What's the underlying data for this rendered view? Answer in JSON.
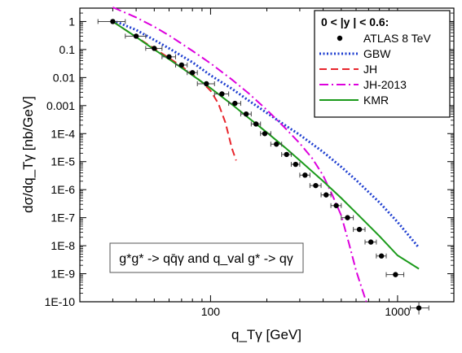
{
  "chart_data": {
    "type": "line",
    "title": "",
    "xlabel": "q_Tγ [GeV]",
    "ylabel": "dσ/dq_Tγ [nb/GeV]",
    "x_scale": "log",
    "y_scale": "log",
    "xlim": [
      20,
      2000
    ],
    "ylim": [
      1e-10,
      3
    ],
    "x_ticks": [
      {
        "value": 100,
        "label": "100"
      },
      {
        "value": 1000,
        "label": "1000"
      }
    ],
    "y_ticks": [
      {
        "value": 1,
        "label": "1"
      },
      {
        "value": 0.1,
        "label": "0.1"
      },
      {
        "value": 0.01,
        "label": "0.01"
      },
      {
        "value": 0.001,
        "label": "0.001"
      },
      {
        "value": 0.0001,
        "label": "1E-4"
      },
      {
        "value": 1e-05,
        "label": "1E-5"
      },
      {
        "value": 1e-06,
        "label": "1E-6"
      },
      {
        "value": 1e-07,
        "label": "1E-7"
      },
      {
        "value": 1e-08,
        "label": "1E-8"
      },
      {
        "value": 1e-09,
        "label": "1E-9"
      },
      {
        "value": 1e-10,
        "label": "1E-10"
      }
    ],
    "legend": {
      "position": "top-right",
      "title": "0 < |y  | < 0.6:",
      "entries": [
        "ATLAS 8 TeV",
        "GBW",
        "JH",
        "JH-2013",
        "KMR"
      ]
    },
    "annotation": "g*g* -> qq̄γ  and q_val g* -> qγ",
    "data_points": {
      "name": "ATLAS 8 TeV",
      "color": "#000000",
      "points": [
        {
          "x": 30,
          "xerr": [
            25,
            35
          ],
          "y": 1.0
        },
        {
          "x": 40,
          "xerr": [
            35,
            45
          ],
          "y": 0.3
        },
        {
          "x": 50,
          "xerr": [
            45,
            55
          ],
          "y": 0.11
        },
        {
          "x": 60,
          "xerr": [
            55,
            65
          ],
          "y": 0.055
        },
        {
          "x": 70,
          "xerr": [
            65,
            75
          ],
          "y": 0.028
        },
        {
          "x": 80,
          "xerr": [
            75,
            85
          ],
          "y": 0.015
        },
        {
          "x": 95,
          "xerr": [
            85,
            105
          ],
          "y": 0.006
        },
        {
          "x": 115,
          "xerr": [
            105,
            125
          ],
          "y": 0.0026
        },
        {
          "x": 135,
          "xerr": [
            125,
            145
          ],
          "y": 0.0012
        },
        {
          "x": 155,
          "xerr": [
            145,
            165
          ],
          "y": 0.0005
        },
        {
          "x": 175,
          "xerr": [
            165,
            185
          ],
          "y": 0.00022
        },
        {
          "x": 195,
          "xerr": [
            185,
            210
          ],
          "y": 0.0001
        },
        {
          "x": 225,
          "xerr": [
            210,
            240
          ],
          "y": 4.2e-05
        },
        {
          "x": 255,
          "xerr": [
            240,
            270
          ],
          "y": 1.8e-05
        },
        {
          "x": 285,
          "xerr": [
            270,
            300
          ],
          "y": 8e-06
        },
        {
          "x": 320,
          "xerr": [
            300,
            340
          ],
          "y": 3.3e-06
        },
        {
          "x": 365,
          "xerr": [
            340,
            390
          ],
          "y": 1.4e-06
        },
        {
          "x": 415,
          "xerr": [
            390,
            440
          ],
          "y": 6.5e-07
        },
        {
          "x": 470,
          "xerr": [
            440,
            500
          ],
          "y": 2.7e-07
        },
        {
          "x": 540,
          "xerr": [
            500,
            580
          ],
          "y": 1e-07
        },
        {
          "x": 625,
          "xerr": [
            580,
            670
          ],
          "y": 3.8e-08
        },
        {
          "x": 720,
          "xerr": [
            670,
            770
          ],
          "y": 1.35e-08
        },
        {
          "x": 820,
          "xerr": [
            770,
            870
          ],
          "y": 4.3e-09
        },
        {
          "x": 975,
          "xerr": [
            870,
            1080
          ],
          "y": 9.3e-10
        },
        {
          "x": 1300,
          "xerr": [
            1170,
            1470
          ],
          "y": 6e-11
        }
      ]
    },
    "series": [
      {
        "name": "GBW",
        "color": "#1f3fd0",
        "style": "dotted",
        "x": [
          30,
          40,
          50,
          60,
          80,
          100,
          130,
          160,
          200,
          250,
          300,
          400,
          500,
          600,
          800,
          1000,
          1300
        ],
        "y": [
          1.1,
          0.5,
          0.22,
          0.11,
          0.035,
          0.012,
          0.004,
          0.0015,
          0.00055,
          0.0002,
          9e-05,
          2.2e-05,
          6.5e-06,
          2.2e-06,
          3.5e-07,
          7e-08,
          8.5e-09
        ]
      },
      {
        "name": "JH",
        "color": "#e8252c",
        "style": "dashed",
        "x": [
          30,
          40,
          50,
          60,
          70,
          80,
          90,
          100,
          110,
          120,
          130,
          137
        ],
        "y": [
          1.0,
          0.28,
          0.11,
          0.05,
          0.025,
          0.013,
          0.0068,
          0.0034,
          0.0012,
          0.00025,
          3e-05,
          1.1e-05
        ]
      },
      {
        "name": "JH-2013",
        "color": "#dd00dd",
        "style": "dashdot",
        "x": [
          30,
          40,
          50,
          60,
          80,
          100,
          130,
          160,
          200,
          250,
          300,
          350,
          400,
          450,
          500,
          550,
          600,
          650,
          680
        ],
        "y": [
          3.2,
          1.4,
          0.65,
          0.32,
          0.09,
          0.032,
          0.0085,
          0.0027,
          0.0007,
          0.00016,
          4.5e-05,
          1.3e-05,
          3.2e-06,
          6e-07,
          1.2e-07,
          1.2e-08,
          1.3e-09,
          2.5e-10,
          1e-10
        ]
      },
      {
        "name": "KMR",
        "color": "#1a9a1a",
        "style": "solid",
        "x": [
          30,
          40,
          50,
          60,
          80,
          100,
          130,
          160,
          200,
          250,
          300,
          400,
          500,
          600,
          800,
          1000,
          1300
        ],
        "y": [
          1.0,
          0.28,
          0.1,
          0.045,
          0.012,
          0.0042,
          0.0011,
          0.00036,
          0.00011,
          3.2e-05,
          1.1e-05,
          2e-06,
          5e-07,
          1.5e-07,
          2.2e-08,
          4.5e-09,
          1.5e-09
        ]
      }
    ]
  }
}
